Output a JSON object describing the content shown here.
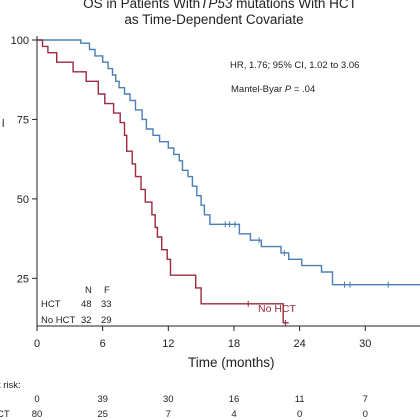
{
  "title": {
    "line1_prefix": "OS in Patients With",
    "line1_italic": "TP53",
    "line1_suffix": " mutations With HCT",
    "line2": "as Time-Dependent Covariate"
  },
  "annotations": {
    "hr": "HR, 1.76; 95% CI, 1.02 to 3.06",
    "mantel_prefix": "Mantel-Byar ",
    "mantel_italic": "P",
    "mantel_suffix": " = .04",
    "ylabel_fragment": "l",
    "no_hct_label": "No HCT"
  },
  "counts_table": {
    "header_n": "N",
    "header_f": "F",
    "rows": [
      {
        "label": "HCT",
        "n": "48",
        "f": "33"
      },
      {
        "label": "No HCT",
        "n": "32",
        "f": "29"
      }
    ]
  },
  "at_risk": {
    "label": "t risk:",
    "rows": [
      {
        "label": "",
        "values": [
          "0",
          "39",
          "30",
          "16",
          "11",
          "7"
        ]
      },
      {
        "label": "CT",
        "values": [
          "80",
          "25",
          "7",
          "4",
          "0",
          "0"
        ]
      }
    ]
  },
  "chart_data": {
    "type": "line",
    "xlabel": "Time (months)",
    "xlim": [
      0,
      35
    ],
    "ylim": [
      10,
      100
    ],
    "xticks": [
      0,
      6,
      12,
      18,
      24,
      30
    ],
    "yticks": [
      25,
      50,
      75,
      100
    ],
    "colors": {
      "hct": "#4a7fb5",
      "no_hct": "#9c2a3e"
    },
    "series": [
      {
        "name": "HCT",
        "color": "#4a7fb5",
        "steps": [
          [
            0,
            100
          ],
          [
            4,
            100
          ],
          [
            4,
            99
          ],
          [
            4.8,
            99
          ],
          [
            4.8,
            97
          ],
          [
            5.3,
            97
          ],
          [
            5.3,
            95
          ],
          [
            6,
            95
          ],
          [
            6,
            93
          ],
          [
            6.5,
            93
          ],
          [
            6.5,
            91
          ],
          [
            6.9,
            91
          ],
          [
            6.9,
            89
          ],
          [
            7.2,
            89
          ],
          [
            7.2,
            87
          ],
          [
            7.5,
            87
          ],
          [
            7.5,
            85
          ],
          [
            8,
            85
          ],
          [
            8,
            83
          ],
          [
            8.5,
            83
          ],
          [
            8.5,
            81
          ],
          [
            9,
            81
          ],
          [
            9,
            78
          ],
          [
            9.6,
            78
          ],
          [
            9.6,
            75
          ],
          [
            10,
            75
          ],
          [
            10,
            72
          ],
          [
            10.6,
            72
          ],
          [
            10.6,
            70
          ],
          [
            11.2,
            70
          ],
          [
            11.2,
            68
          ],
          [
            12,
            68
          ],
          [
            12,
            66
          ],
          [
            12.5,
            66
          ],
          [
            12.5,
            64
          ],
          [
            13,
            64
          ],
          [
            13,
            62
          ],
          [
            13.3,
            62
          ],
          [
            13.3,
            59
          ],
          [
            13.8,
            59
          ],
          [
            13.8,
            57
          ],
          [
            14.2,
            57
          ],
          [
            14.2,
            54
          ],
          [
            14.6,
            54
          ],
          [
            14.6,
            51
          ],
          [
            15,
            51
          ],
          [
            15,
            48
          ],
          [
            15.3,
            48
          ],
          [
            15.3,
            45
          ],
          [
            15.8,
            45
          ],
          [
            15.8,
            42
          ],
          [
            18.5,
            42
          ],
          [
            18.5,
            39
          ],
          [
            19.5,
            39
          ],
          [
            19.5,
            37
          ],
          [
            20.5,
            37
          ],
          [
            20.5,
            35
          ],
          [
            22.3,
            35
          ],
          [
            22.3,
            33
          ],
          [
            23,
            33
          ],
          [
            23,
            31
          ],
          [
            24.2,
            31
          ],
          [
            24.2,
            29
          ],
          [
            26,
            29
          ],
          [
            26,
            27
          ],
          [
            27,
            27
          ],
          [
            27,
            23
          ],
          [
            35,
            23
          ]
        ],
        "censor_x": [
          17.2,
          17.6,
          18.1,
          20.3,
          22.6,
          28.1,
          28.6,
          32.1
        ]
      },
      {
        "name": "No HCT",
        "color": "#9c2a3e",
        "steps": [
          [
            0,
            100
          ],
          [
            0.5,
            100
          ],
          [
            0.5,
            98
          ],
          [
            1,
            98
          ],
          [
            1,
            96
          ],
          [
            1.8,
            96
          ],
          [
            1.8,
            93
          ],
          [
            3.3,
            93
          ],
          [
            3.3,
            90
          ],
          [
            4.5,
            90
          ],
          [
            4.5,
            87
          ],
          [
            5.6,
            87
          ],
          [
            5.6,
            83
          ],
          [
            6.2,
            83
          ],
          [
            6.2,
            80
          ],
          [
            7,
            80
          ],
          [
            7,
            77
          ],
          [
            7.6,
            77
          ],
          [
            7.6,
            74
          ],
          [
            8,
            74
          ],
          [
            8,
            70
          ],
          [
            8.2,
            70
          ],
          [
            8.2,
            65
          ],
          [
            8.7,
            65
          ],
          [
            8.7,
            61
          ],
          [
            9,
            61
          ],
          [
            9,
            57
          ],
          [
            9.5,
            57
          ],
          [
            9.5,
            53
          ],
          [
            9.9,
            53
          ],
          [
            9.9,
            49
          ],
          [
            10.5,
            49
          ],
          [
            10.5,
            45
          ],
          [
            10.8,
            45
          ],
          [
            10.8,
            41
          ],
          [
            11,
            41
          ],
          [
            11,
            38
          ],
          [
            11.4,
            38
          ],
          [
            11.4,
            34
          ],
          [
            11.9,
            34
          ],
          [
            11.9,
            31
          ],
          [
            12.2,
            31
          ],
          [
            12.2,
            26
          ],
          [
            14.5,
            26
          ],
          [
            14.5,
            22
          ],
          [
            15,
            22
          ],
          [
            15,
            17
          ],
          [
            22.5,
            17
          ],
          [
            22.5,
            11
          ],
          [
            23,
            11
          ]
        ],
        "censor_x": [
          19.3,
          22.7
        ]
      }
    ]
  }
}
